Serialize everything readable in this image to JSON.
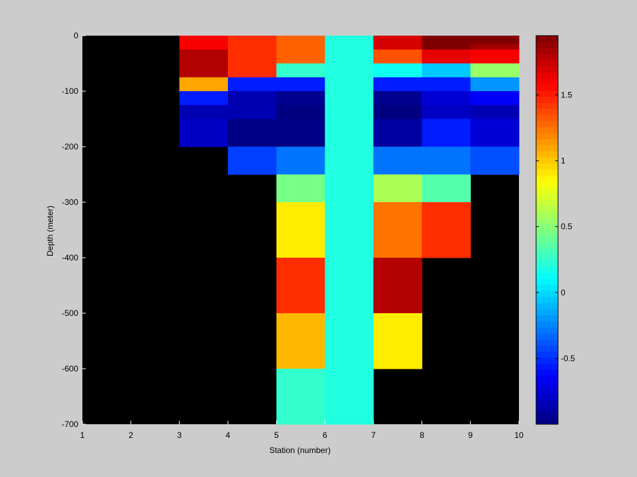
{
  "chart_data": {
    "type": "heatmap",
    "title": "",
    "xlabel": "Station (number)",
    "ylabel": "Depth (meter)",
    "xlim": [
      1,
      10
    ],
    "ylim": [
      -700,
      0
    ],
    "x_ticks": [
      "1",
      "2",
      "3",
      "4",
      "5",
      "6",
      "7",
      "8",
      "9",
      "10"
    ],
    "y_ticks": [
      "0",
      "-100",
      "-200",
      "-300",
      "-400",
      "-500",
      "-600",
      "-700"
    ],
    "colorbar": {
      "colormap": "jet",
      "clim": [
        -1,
        1.95
      ],
      "ticks": [
        "-0.5",
        "0",
        "0.5",
        "1",
        "1.5"
      ]
    },
    "background_color": "#000000",
    "cells": [
      {
        "x": [
          3,
          4
        ],
        "y": [
          0,
          -25
        ],
        "value": 1.6
      },
      {
        "x": [
          3,
          4
        ],
        "y": [
          -25,
          -75
        ],
        "value": 1.8
      },
      {
        "x": [
          3,
          4
        ],
        "y": [
          -75,
          -100
        ],
        "value": 1.1
      },
      {
        "x": [
          3,
          4
        ],
        "y": [
          -100,
          -125
        ],
        "value": -0.55
      },
      {
        "x": [
          3,
          4
        ],
        "y": [
          -125,
          -150
        ],
        "value": -0.85
      },
      {
        "x": [
          3,
          4
        ],
        "y": [
          -150,
          -200
        ],
        "value": -0.8
      },
      {
        "x": [
          4,
          5
        ],
        "y": [
          0,
          -25
        ],
        "value": 1.45
      },
      {
        "x": [
          4,
          5
        ],
        "y": [
          -25,
          -75
        ],
        "value": 1.45
      },
      {
        "x": [
          4,
          5
        ],
        "y": [
          -75,
          -100
        ],
        "value": -0.55
      },
      {
        "x": [
          4,
          5
        ],
        "y": [
          -100,
          -150
        ],
        "value": -0.85
      },
      {
        "x": [
          4,
          5
        ],
        "y": [
          -150,
          -200
        ],
        "value": -0.98
      },
      {
        "x": [
          4,
          5
        ],
        "y": [
          -200,
          -250
        ],
        "value": -0.45
      },
      {
        "x": [
          5,
          6
        ],
        "y": [
          0,
          -50
        ],
        "value": 1.3
      },
      {
        "x": [
          5,
          6
        ],
        "y": [
          -50,
          -75
        ],
        "value": 0.25
      },
      {
        "x": [
          5,
          6
        ],
        "y": [
          -75,
          -100
        ],
        "value": -0.55
      },
      {
        "x": [
          5,
          6
        ],
        "y": [
          -100,
          -125
        ],
        "value": -0.95
      },
      {
        "x": [
          5,
          6
        ],
        "y": [
          -125,
          -150
        ],
        "value": -1.0
      },
      {
        "x": [
          5,
          6
        ],
        "y": [
          -150,
          -200
        ],
        "value": -0.98
      },
      {
        "x": [
          5,
          6
        ],
        "y": [
          -200,
          -250
        ],
        "value": -0.3
      },
      {
        "x": [
          5,
          6
        ],
        "y": [
          -250,
          -300
        ],
        "value": 0.45
      },
      {
        "x": [
          5,
          6
        ],
        "y": [
          -300,
          -400
        ],
        "value": 0.9
      },
      {
        "x": [
          5,
          6
        ],
        "y": [
          -400,
          -500
        ],
        "value": 1.45
      },
      {
        "x": [
          5,
          6
        ],
        "y": [
          -500,
          -600
        ],
        "value": 1.05
      },
      {
        "x": [
          5,
          6
        ],
        "y": [
          -600,
          -700
        ],
        "value": 0.25
      },
      {
        "x": [
          6,
          7
        ],
        "y": [
          0,
          -700
        ],
        "value": 0.2
      },
      {
        "x": [
          7,
          8
        ],
        "y": [
          0,
          -25
        ],
        "value": 1.7
      },
      {
        "x": [
          7,
          8
        ],
        "y": [
          -25,
          -50
        ],
        "value": 1.35
      },
      {
        "x": [
          7,
          8
        ],
        "y": [
          -50,
          -75
        ],
        "value": 0.15
      },
      {
        "x": [
          7,
          8
        ],
        "y": [
          -75,
          -100
        ],
        "value": -0.55
      },
      {
        "x": [
          7,
          8
        ],
        "y": [
          -100,
          -125
        ],
        "value": -0.95
      },
      {
        "x": [
          7,
          8
        ],
        "y": [
          -125,
          -150
        ],
        "value": -1.0
      },
      {
        "x": [
          7,
          8
        ],
        "y": [
          -150,
          -200
        ],
        "value": -0.9
      },
      {
        "x": [
          7,
          8
        ],
        "y": [
          -200,
          -250
        ],
        "value": -0.3
      },
      {
        "x": [
          7,
          8
        ],
        "y": [
          -250,
          -300
        ],
        "value": 0.6
      },
      {
        "x": [
          7,
          8
        ],
        "y": [
          -300,
          -400
        ],
        "value": 1.25
      },
      {
        "x": [
          7,
          8
        ],
        "y": [
          -400,
          -500
        ],
        "value": 1.8
      },
      {
        "x": [
          7,
          8
        ],
        "y": [
          -500,
          -600
        ],
        "value": 0.9
      },
      {
        "x": [
          8,
          9
        ],
        "y": [
          0,
          -25
        ],
        "value": 1.95
      },
      {
        "x": [
          8,
          9
        ],
        "y": [
          -25,
          -50
        ],
        "value": 1.65
      },
      {
        "x": [
          8,
          9
        ],
        "y": [
          -50,
          -75
        ],
        "value": -0.05
      },
      {
        "x": [
          8,
          9
        ],
        "y": [
          -75,
          -100
        ],
        "value": -0.55
      },
      {
        "x": [
          8,
          9
        ],
        "y": [
          -100,
          -125
        ],
        "value": -0.75
      },
      {
        "x": [
          8,
          9
        ],
        "y": [
          -125,
          -150
        ],
        "value": -0.8
      },
      {
        "x": [
          8,
          9
        ],
        "y": [
          -150,
          -200
        ],
        "value": -0.55
      },
      {
        "x": [
          8,
          9
        ],
        "y": [
          -200,
          -250
        ],
        "value": -0.3
      },
      {
        "x": [
          8,
          9
        ],
        "y": [
          -250,
          -300
        ],
        "value": 0.35
      },
      {
        "x": [
          8,
          9
        ],
        "y": [
          -300,
          -400
        ],
        "value": 1.45
      },
      {
        "x": [
          9,
          10
        ],
        "y": [
          0,
          -15
        ],
        "value": 1.95
      },
      {
        "x": [
          9,
          10
        ],
        "y": [
          -15,
          -25
        ],
        "value": 1.85
      },
      {
        "x": [
          9,
          10
        ],
        "y": [
          -25,
          -50
        ],
        "value": 1.6
      },
      {
        "x": [
          9,
          10
        ],
        "y": [
          -50,
          -75
        ],
        "value": 0.55
      },
      {
        "x": [
          9,
          10
        ],
        "y": [
          -75,
          -100
        ],
        "value": -0.2
      },
      {
        "x": [
          9,
          10
        ],
        "y": [
          -100,
          -125
        ],
        "value": -0.65
      },
      {
        "x": [
          9,
          10
        ],
        "y": [
          -125,
          -150
        ],
        "value": -0.85
      },
      {
        "x": [
          9,
          10
        ],
        "y": [
          -150,
          -200
        ],
        "value": -0.75
      },
      {
        "x": [
          9,
          10
        ],
        "y": [
          -200,
          -250
        ],
        "value": -0.4
      }
    ]
  }
}
